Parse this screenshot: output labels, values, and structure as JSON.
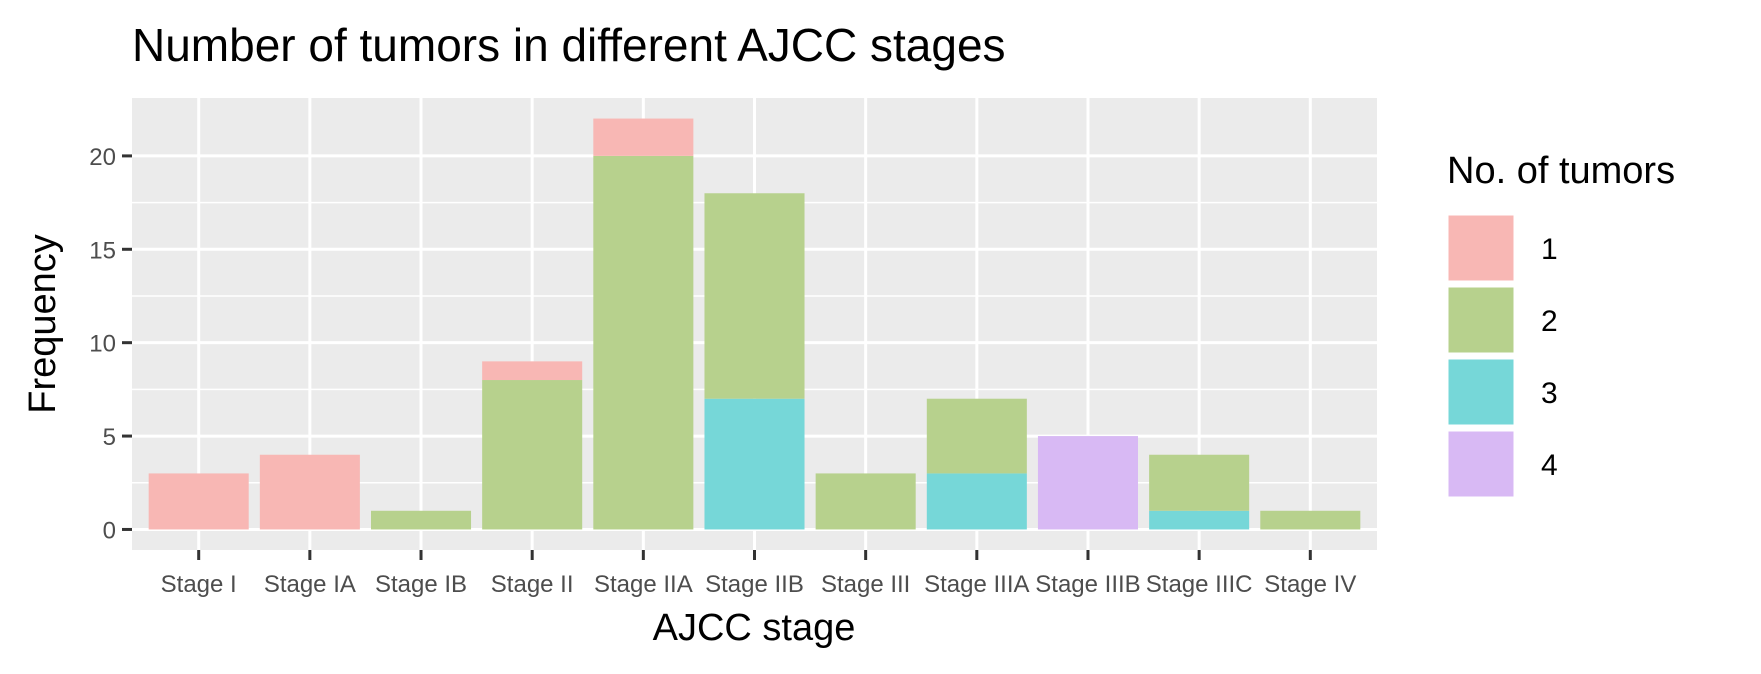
{
  "chart_data": {
    "type": "bar",
    "stacked": true,
    "title": "Number of tumors in different AJCC stages",
    "xlabel": "AJCC stage",
    "ylabel": "Frequency",
    "categories": [
      "Stage I",
      "Stage IA",
      "Stage IB",
      "Stage II",
      "Stage IIA",
      "Stage IIB",
      "Stage III",
      "Stage IIIA",
      "Stage IIIB",
      "Stage IIIC",
      "Stage IV"
    ],
    "series": [
      {
        "name": "1",
        "color": "#f8b7b4",
        "values": [
          3,
          4,
          0,
          1,
          2,
          0,
          0,
          0,
          0,
          0,
          0
        ]
      },
      {
        "name": "2",
        "color": "#b7d18d",
        "values": [
          0,
          0,
          1,
          8,
          20,
          11,
          3,
          4,
          0,
          3,
          1
        ]
      },
      {
        "name": "3",
        "color": "#76d7d8",
        "values": [
          0,
          0,
          0,
          0,
          0,
          7,
          0,
          3,
          0,
          1,
          0
        ]
      },
      {
        "name": "4",
        "color": "#d8b9f4",
        "values": [
          0,
          0,
          0,
          0,
          0,
          0,
          0,
          0,
          5,
          0,
          0
        ]
      }
    ],
    "ylim": [
      -1.1,
      23.1
    ],
    "yticks": [
      0,
      5,
      10,
      15,
      20
    ],
    "grid": true,
    "legend_title": "No. of tumors",
    "legend_position": "right"
  }
}
